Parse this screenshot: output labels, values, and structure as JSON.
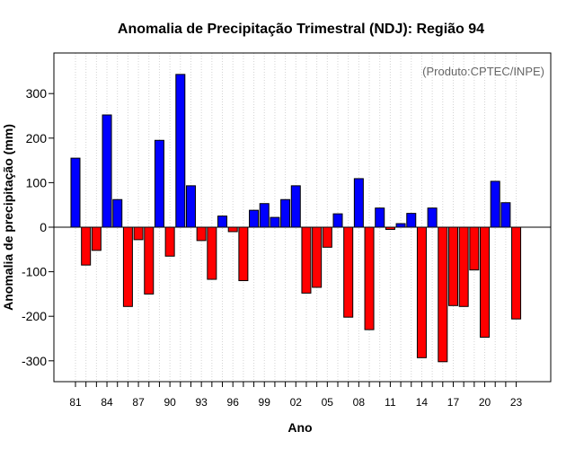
{
  "chart_data": {
    "type": "bar",
    "title": "Anomalia de Precipitação Trimestral (NDJ): Região 94",
    "source_note": "(Produto:CPTEC/INPE)",
    "xlabel": "Ano",
    "ylabel": "Anomalia de precipitação (mm)",
    "ylim": [
      -350,
      390
    ],
    "yticks": [
      -300,
      -200,
      -100,
      0,
      100,
      200,
      300
    ],
    "categories": [
      "81",
      "82",
      "83",
      "84",
      "85",
      "86",
      "87",
      "88",
      "89",
      "90",
      "91",
      "92",
      "93",
      "94",
      "95",
      "96",
      "97",
      "98",
      "99",
      "00",
      "01",
      "02",
      "03",
      "04",
      "05",
      "06",
      "07",
      "08",
      "09",
      "10",
      "11",
      "12",
      "13",
      "14",
      "15",
      "16",
      "17",
      "18",
      "19",
      "20",
      "21",
      "22",
      "23"
    ],
    "xtick_labels": [
      "81",
      "84",
      "87",
      "90",
      "93",
      "96",
      "99",
      "02",
      "05",
      "08",
      "11",
      "14",
      "17",
      "20",
      "23"
    ],
    "values": [
      155,
      -85,
      -52,
      252,
      62,
      -178,
      -28,
      -150,
      195,
      -65,
      343,
      93,
      -30,
      -117,
      25,
      -10,
      -120,
      38,
      53,
      22,
      62,
      93,
      -148,
      -135,
      -45,
      30,
      -202,
      109,
      -230,
      43,
      -5,
      8,
      31,
      -293,
      43,
      -302,
      -176,
      -178,
      -96,
      -247,
      103,
      55,
      -206
    ],
    "positive_color": "#0000ff",
    "negative_color": "#ff0000",
    "grid": "vertical dotted",
    "zero_line": true
  }
}
